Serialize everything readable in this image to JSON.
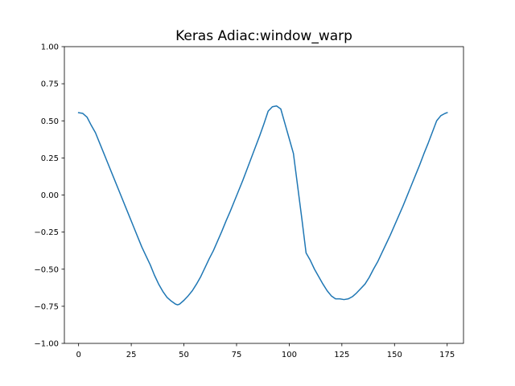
{
  "chart_data": {
    "type": "line",
    "title": "Keras Adiac:window_warp",
    "xlabel": "",
    "ylabel": "",
    "xlim": [
      -6.75,
      182.75
    ],
    "ylim": [
      -1.0,
      1.0
    ],
    "xticks": [
      0,
      25,
      50,
      75,
      100,
      125,
      150,
      175
    ],
    "yticks": [
      -1.0,
      -0.75,
      -0.5,
      -0.25,
      0.0,
      0.25,
      0.5,
      0.75,
      1.0
    ],
    "ytick_labels": [
      "−1.00",
      "−0.75",
      "−0.50",
      "−0.25",
      "0.00",
      "0.25",
      "0.50",
      "0.75",
      "1.00"
    ],
    "grid": false,
    "legend": "none",
    "series": [
      {
        "color": "#1f77b4",
        "x": [
          0,
          2,
          4,
          6,
          8,
          10,
          12,
          14,
          16,
          18,
          20,
          22,
          24,
          26,
          28,
          30,
          32,
          34,
          36,
          38,
          40,
          42,
          44,
          46,
          47,
          48,
          50,
          52,
          54,
          56,
          58,
          60,
          62,
          64,
          66,
          68,
          70,
          72,
          74,
          76,
          78,
          80,
          82,
          84,
          86,
          88,
          90,
          92,
          94,
          96,
          98,
          100,
          102,
          104,
          106,
          108,
          110,
          112,
          114,
          116,
          118,
          120,
          122,
          124,
          126,
          128,
          130,
          132,
          134,
          136,
          138,
          140,
          142,
          144,
          146,
          148,
          150,
          152,
          154,
          156,
          158,
          160,
          162,
          164,
          166,
          168,
          170,
          172,
          174,
          175
        ],
        "y": [
          0.555,
          0.55,
          0.525,
          0.47,
          0.42,
          0.35,
          0.28,
          0.21,
          0.14,
          0.07,
          0.0,
          -0.07,
          -0.14,
          -0.21,
          -0.28,
          -0.35,
          -0.41,
          -0.47,
          -0.54,
          -0.6,
          -0.65,
          -0.69,
          -0.715,
          -0.735,
          -0.74,
          -0.735,
          -0.71,
          -0.68,
          -0.645,
          -0.6,
          -0.55,
          -0.49,
          -0.43,
          -0.375,
          -0.31,
          -0.245,
          -0.175,
          -0.11,
          -0.04,
          0.03,
          0.1,
          0.175,
          0.25,
          0.325,
          0.4,
          0.48,
          0.565,
          0.595,
          0.6,
          0.58,
          0.48,
          0.38,
          0.28,
          0.06,
          -0.16,
          -0.39,
          -0.44,
          -0.5,
          -0.55,
          -0.6,
          -0.645,
          -0.68,
          -0.7,
          -0.7,
          -0.705,
          -0.7,
          -0.685,
          -0.66,
          -0.63,
          -0.6,
          -0.555,
          -0.5,
          -0.45,
          -0.39,
          -0.33,
          -0.27,
          -0.205,
          -0.14,
          -0.075,
          -0.005,
          0.065,
          0.135,
          0.205,
          0.28,
          0.35,
          0.425,
          0.5,
          0.535,
          0.55,
          0.555
        ]
      }
    ]
  }
}
